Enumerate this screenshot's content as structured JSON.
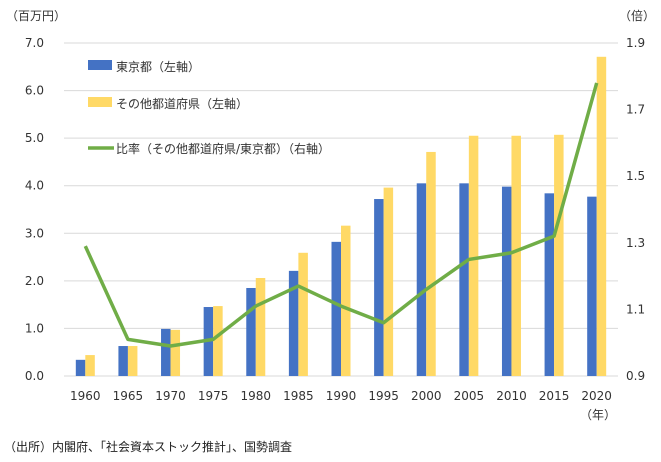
{
  "chart_data": {
    "type": "bar+line",
    "title": "",
    "left_axis": {
      "label": "（百万円）",
      "ylim": [
        0,
        7
      ],
      "ticks": [
        "0.0",
        "1.0",
        "2.0",
        "3.0",
        "4.0",
        "5.0",
        "6.0",
        "7.0"
      ]
    },
    "right_axis": {
      "label": "（倍）",
      "ylim": [
        0.9,
        1.9
      ],
      "ticks": [
        "0.9",
        "1.1",
        "1.3",
        "1.5",
        "1.7",
        "1.9"
      ]
    },
    "xlabel": "（年）",
    "categories": [
      "1960",
      "1965",
      "1970",
      "1975",
      "1980",
      "1985",
      "1990",
      "1995",
      "2000",
      "2005",
      "2010",
      "2015",
      "2020"
    ],
    "series": [
      {
        "name": "東京都（左軸）",
        "type": "bar",
        "axis": "left",
        "color": "#4472c4",
        "values": [
          0.34,
          0.63,
          0.99,
          1.45,
          1.85,
          2.21,
          2.82,
          3.72,
          4.05,
          4.05,
          3.98,
          3.84,
          3.77
        ]
      },
      {
        "name": "その他都道府県（左軸）",
        "type": "bar",
        "axis": "left",
        "color": "#ffd966",
        "values": [
          0.44,
          0.63,
          0.97,
          1.47,
          2.06,
          2.59,
          3.16,
          3.96,
          4.71,
          5.05,
          5.05,
          5.07,
          6.71
        ]
      },
      {
        "name": "比率（その他都道府県/東京都）（右軸）",
        "type": "line",
        "axis": "right",
        "color": "#70ad47",
        "values": [
          1.29,
          1.01,
          0.99,
          1.01,
          1.11,
          1.17,
          1.11,
          1.06,
          1.16,
          1.25,
          1.27,
          1.32,
          1.78
        ]
      }
    ],
    "legend_position": "top-left",
    "grid": true
  },
  "source": "（出所）内閣府、「社会資本ストック推計」、国勢調査"
}
